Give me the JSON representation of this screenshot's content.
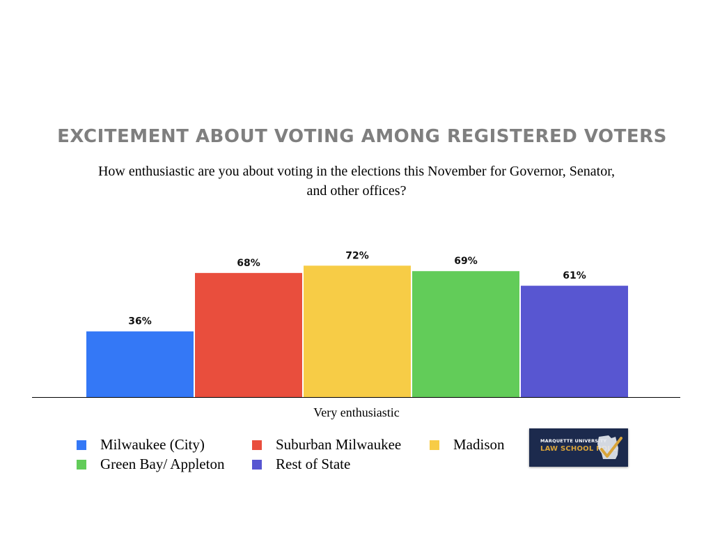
{
  "title": "EXCITEMENT ABOUT VOTING AMONG REGISTERED VOTERS",
  "subtitle": "How enthusiastic are you about voting in the elections this November for Governor, Senator, and other offices?",
  "chart_data": {
    "type": "bar",
    "categories": [
      "Very enthusiastic"
    ],
    "ylim": [
      0,
      100
    ],
    "grid": false,
    "legend_position": "bottom",
    "series": [
      {
        "name": "Milwaukee (City)",
        "values": [
          36
        ],
        "label": "36%",
        "color": "#3478f6"
      },
      {
        "name": "Suburban Milwaukee",
        "values": [
          68
        ],
        "label": "68%",
        "color": "#e94e3d"
      },
      {
        "name": "Madison",
        "values": [
          72
        ],
        "label": "72%",
        "color": "#f7cc46"
      },
      {
        "name": "Green Bay/ Appleton",
        "values": [
          69
        ],
        "label": "69%",
        "color": "#62cc59"
      },
      {
        "name": "Rest of State",
        "values": [
          61
        ],
        "label": "61%",
        "color": "#5856d1"
      }
    ]
  },
  "logo": {
    "line1": "MARQUETTE UNIVERSITY",
    "line2": "LAW SCHOOL POLL"
  }
}
